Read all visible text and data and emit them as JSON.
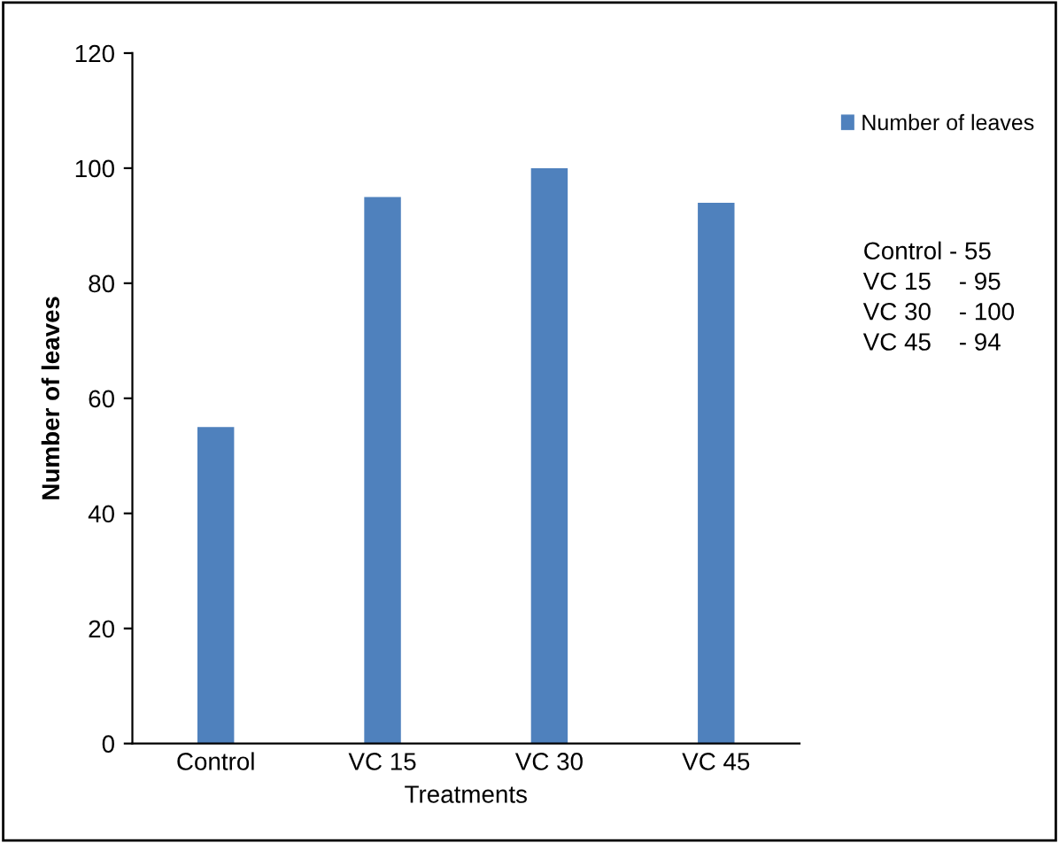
{
  "chart_data": {
    "type": "bar",
    "xlabel": "Treatments",
    "ylabel": "Number of leaves",
    "categories": [
      "Control",
      "VC 15",
      "VC 30",
      "VC 45"
    ],
    "series": [
      {
        "name": "Number of leaves",
        "color": "#4f81bd",
        "values": [
          55,
          95,
          100,
          94
        ]
      }
    ],
    "ylim": [
      0,
      120
    ],
    "yticks": [
      0,
      20,
      40,
      60,
      80,
      100,
      120
    ],
    "legend": "right",
    "annotations": [
      "Control - 55",
      "VC 15    - 95",
      "VC 30    - 100",
      "VC 45    - 94"
    ]
  }
}
